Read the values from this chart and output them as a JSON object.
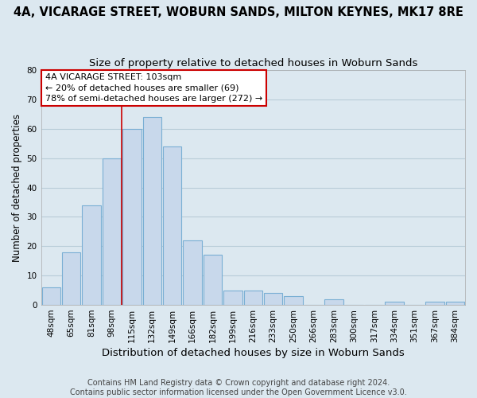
{
  "title": "4A, VICARAGE STREET, WOBURN SANDS, MILTON KEYNES, MK17 8RE",
  "subtitle": "Size of property relative to detached houses in Woburn Sands",
  "xlabel": "Distribution of detached houses by size in Woburn Sands",
  "ylabel": "Number of detached properties",
  "bar_labels": [
    "48sqm",
    "65sqm",
    "81sqm",
    "98sqm",
    "115sqm",
    "132sqm",
    "149sqm",
    "166sqm",
    "182sqm",
    "199sqm",
    "216sqm",
    "233sqm",
    "250sqm",
    "266sqm",
    "283sqm",
    "300sqm",
    "317sqm",
    "334sqm",
    "351sqm",
    "367sqm",
    "384sqm"
  ],
  "bar_values": [
    6,
    18,
    34,
    50,
    60,
    64,
    54,
    22,
    17,
    5,
    5,
    4,
    3,
    0,
    2,
    0,
    0,
    1,
    0,
    1,
    1
  ],
  "bar_color": "#c8d8eb",
  "bar_edge_color": "#7aafd4",
  "background_color": "#dce8f0",
  "plot_bg_color": "#dce8f0",
  "grid_color": "#b8ccd8",
  "vline_x": 3.5,
  "vline_color": "#cc0000",
  "annotation_line1": "4A VICARAGE STREET: 103sqm",
  "annotation_line2": "← 20% of detached houses are smaller (69)",
  "annotation_line3": "78% of semi-detached houses are larger (272) →",
  "annotation_box_color": "#ffffff",
  "annotation_box_edge": "#cc0000",
  "ylim": [
    0,
    80
  ],
  "yticks": [
    0,
    10,
    20,
    30,
    40,
    50,
    60,
    70,
    80
  ],
  "footer": "Contains HM Land Registry data © Crown copyright and database right 2024.\nContains public sector information licensed under the Open Government Licence v3.0.",
  "title_fontsize": 10.5,
  "subtitle_fontsize": 9.5,
  "xlabel_fontsize": 9.5,
  "ylabel_fontsize": 8.5,
  "tick_fontsize": 7.5,
  "annotation_fontsize": 8,
  "footer_fontsize": 7
}
